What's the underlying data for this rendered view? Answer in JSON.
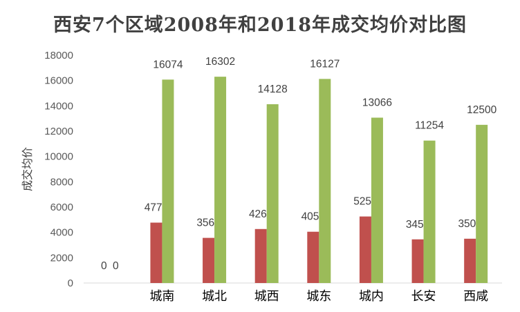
{
  "chart_data": {
    "type": "bar",
    "title": "西安7个区域2008年和2018年成交均价对比图",
    "ylabel": "成交均价",
    "ylim": [
      0,
      18000
    ],
    "yticks": [
      0,
      2000,
      4000,
      6000,
      8000,
      10000,
      12000,
      14000,
      16000,
      18000
    ],
    "categories": [
      "",
      "城南",
      "城北",
      "城西",
      "城东",
      "城内",
      "长安",
      "西咸"
    ],
    "series": [
      {
        "values": [
          0,
          4772,
          3567,
          4266,
          4052,
          5257,
          3450,
          3500
        ],
        "color": "#c0504d"
      },
      {
        "values": [
          0,
          16074,
          16302,
          14128,
          16127,
          13066,
          11254,
          12500
        ],
        "color": "#9bbb59"
      }
    ],
    "grid": false,
    "legend": "none"
  }
}
